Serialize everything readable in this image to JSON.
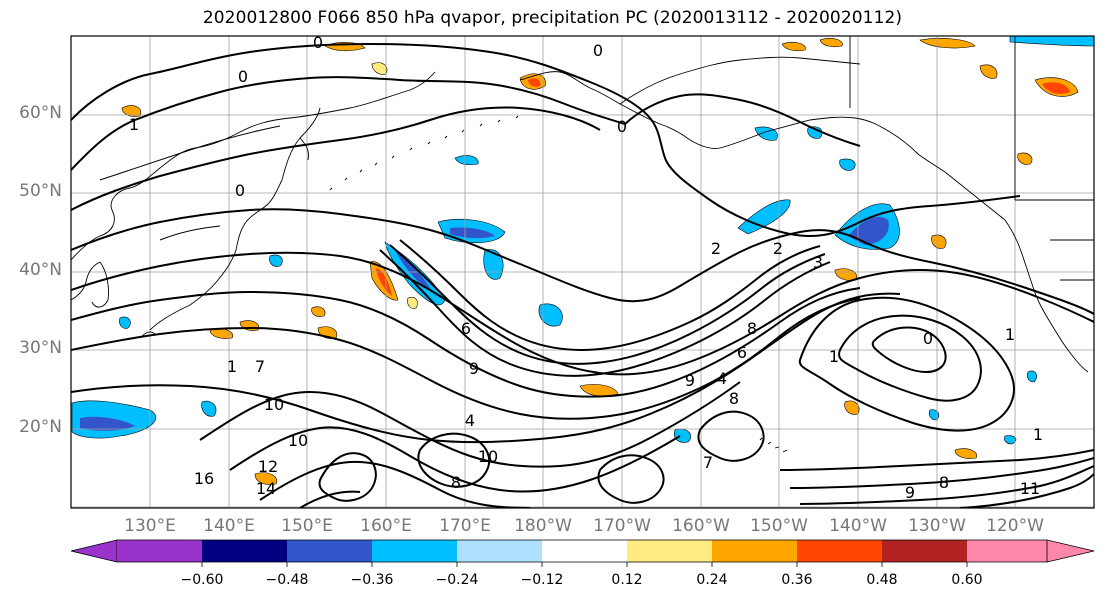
{
  "title": "2020012800 F066 850 hPa qvapor, precipitation PC (2020013112 - 2020020112)",
  "map": {
    "lat_labels": [
      "60°N",
      "50°N",
      "40°N",
      "30°N",
      "20°N"
    ],
    "lon_labels": [
      "130°E",
      "140°E",
      "150°E",
      "160°E",
      "170°E",
      "180°W",
      "170°W",
      "160°W",
      "150°W",
      "140°W",
      "130°W",
      "120°W"
    ],
    "contour_labels": [
      "0",
      "0",
      "0",
      "0",
      "0",
      "0",
      "1",
      "1",
      "1",
      "1",
      "1",
      "2",
      "2",
      "3",
      "4",
      "4",
      "6",
      "6",
      "7",
      "7",
      "8",
      "8",
      "8",
      "8",
      "9",
      "9",
      "9",
      "10",
      "10",
      "10",
      "11",
      "12",
      "14",
      "16"
    ],
    "colors": {
      "coast": "#000000",
      "grid": "#a0a0a0",
      "contour": "#000000"
    }
  },
  "colorbar": {
    "ticks": [
      "−0.60",
      "−0.48",
      "−0.36",
      "−0.24",
      "−0.12",
      "0.12",
      "0.24",
      "0.36",
      "0.48",
      "0.60"
    ],
    "colors": [
      "#9933cc",
      "#000080",
      "#3355cc",
      "#00bfff",
      "#b0e0ff",
      "#ffffff",
      "#ffeb80",
      "#ffa500",
      "#ff4500",
      "#b22222",
      "#ff88aa"
    ]
  }
}
